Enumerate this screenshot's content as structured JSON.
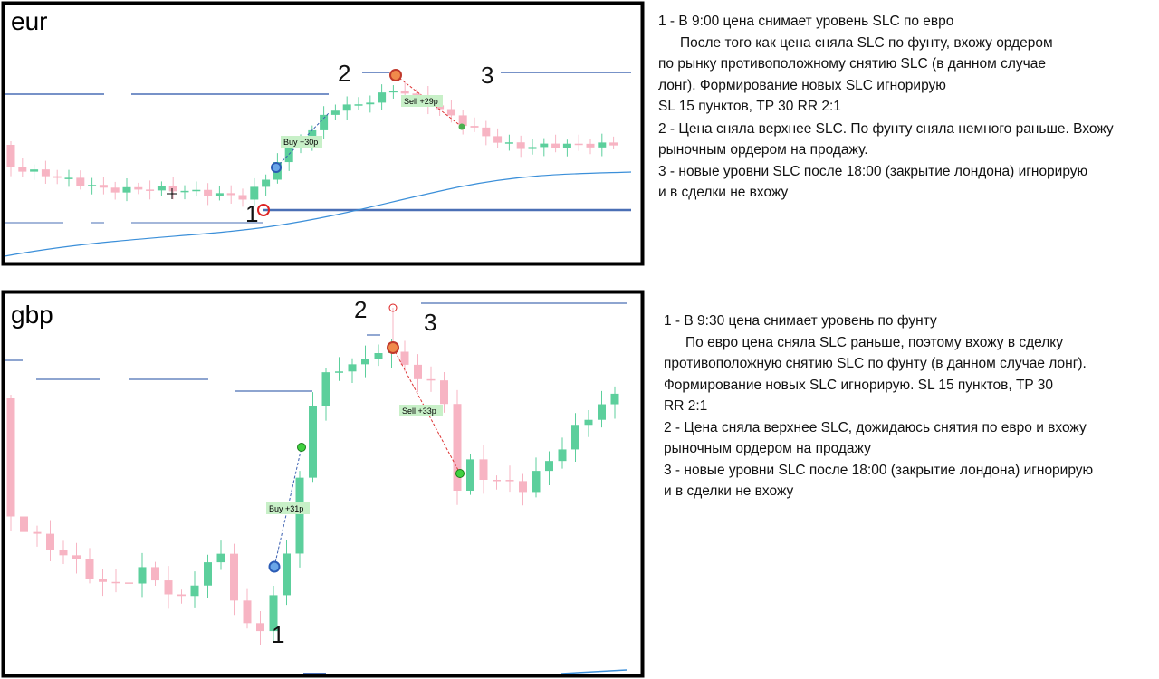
{
  "panels": [
    {
      "label": "eur",
      "markers": [
        "1",
        "2",
        "3"
      ],
      "trades": [
        "Buy +30p",
        "Sell +29p"
      ],
      "notes": [
        "1 - В 9:00 цена снимает уровень SLC по евро",
        "После того как цена сняла SLC по фунту, вхожу ордером",
        "по рынку противоположному снятию SLC (в данном случае",
        "лонг). Формирование новых SLC игнорирую",
        "SL 15 пунктов, TP 30 RR 2:1",
        "2 - Цена сняла верхнее SLC. По фунту сняла немного раньше. Вхожу",
        "рыночным ордером на продажу.",
        "3 - новые уровни SLC после 18:00 (закрытие лондона) игнорирую",
        "и в сделки не вхожу"
      ]
    },
    {
      "label": "gbp",
      "markers": [
        "1",
        "2",
        "3"
      ],
      "trades": [
        "Buy +31p",
        "Sell +33p"
      ],
      "notes": [
        "1 - В 9:30 цена снимает уровень по фунту",
        "По евро цена сняла SLC раньше, поэтому вхожу в сделку",
        "противоположную снятию SLC по фунту (в данном случае лонг).",
        "Формирование новых SLC игнорирую. SL 15 пунктов, TP 30",
        "RR 2:1",
        "2 - Цена сняла верхнее SLC, дожидаюсь снятия по евро и вхожу",
        "рыночным ордером на продажу",
        "3 - новые уровни SLC после 18:00 (закрытие лондона) игнорирую",
        "и в сделки не вхожу"
      ]
    }
  ]
}
